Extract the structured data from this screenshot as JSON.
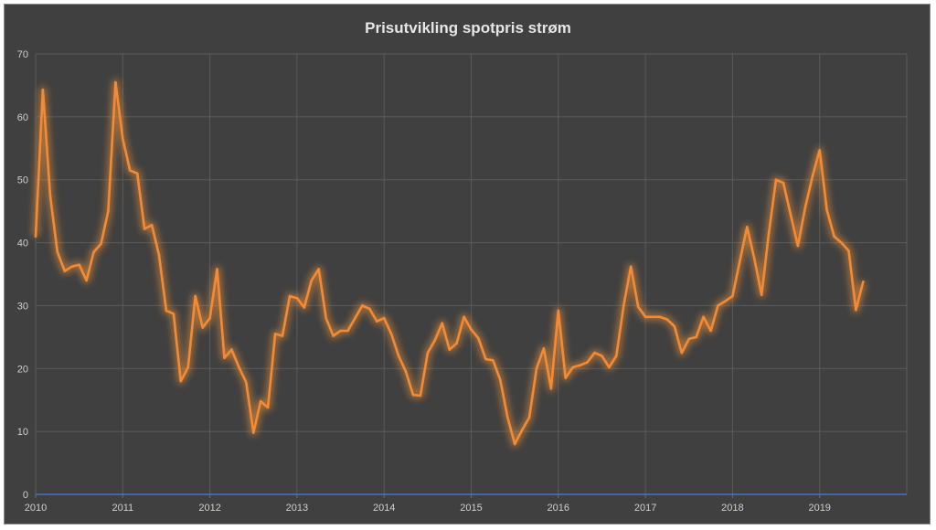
{
  "chart_data": {
    "type": "line",
    "title": "Prisutvikling spotpris strøm",
    "xlabel": "",
    "ylabel": "",
    "x_start": "2010-01",
    "x_step": "month",
    "xlim": [
      "2010-01",
      "2019-12"
    ],
    "ylim": [
      0,
      70
    ],
    "y_ticks": [
      "0",
      "10",
      "20",
      "30",
      "40",
      "50",
      "60",
      "70"
    ],
    "x_ticks": [
      "2010",
      "2011",
      "2012",
      "2013",
      "2014",
      "2015",
      "2016",
      "2017",
      "2018",
      "2019"
    ],
    "grid": true,
    "legend": "none",
    "colors": {
      "background": "#404040",
      "series": "#f58a33",
      "glow": "#ff9a3c",
      "x_axis": "#4472c4",
      "grid": "#5b5b5b"
    },
    "series": [
      {
        "values": [
          41,
          64.3,
          47.5,
          38.5,
          35.5,
          36.2,
          36.5,
          34,
          38.5,
          39.8,
          45,
          65.5,
          56.5,
          51.5,
          51,
          42.2,
          42.8,
          38,
          29.2,
          28.7,
          18,
          20.2,
          31.5,
          26.5,
          28,
          35.8,
          21.7,
          23,
          20.2,
          17.8,
          9.8,
          14.8,
          13.8,
          25.5,
          25.2,
          31.5,
          31.2,
          29.7,
          34,
          35.8,
          28,
          25.2,
          26,
          26,
          28,
          30,
          29.5,
          27.5,
          28,
          25.5,
          22,
          19.5,
          15.8,
          15.7,
          22.5,
          24.5,
          27.2,
          23,
          24,
          28.2,
          26.2,
          24.8,
          21.5,
          21.3,
          18.2,
          12.3,
          8,
          10.2,
          12.2,
          20,
          23.2,
          16.8,
          29.2,
          18.5,
          20.2,
          20.5,
          21,
          22.5,
          22,
          20.2,
          22,
          30,
          36.2,
          29.8,
          28.2,
          28.2,
          28.2,
          27.8,
          26.7,
          22.5,
          24.7,
          25,
          28.2,
          26,
          30,
          30.7,
          31.5,
          37,
          42.5,
          37.5,
          31.7,
          41.5,
          50,
          49.5,
          44.5,
          39.5,
          45.5,
          50.5,
          54.7,
          45.2,
          41,
          40,
          38.7,
          29.3,
          33.8
        ]
      }
    ]
  }
}
